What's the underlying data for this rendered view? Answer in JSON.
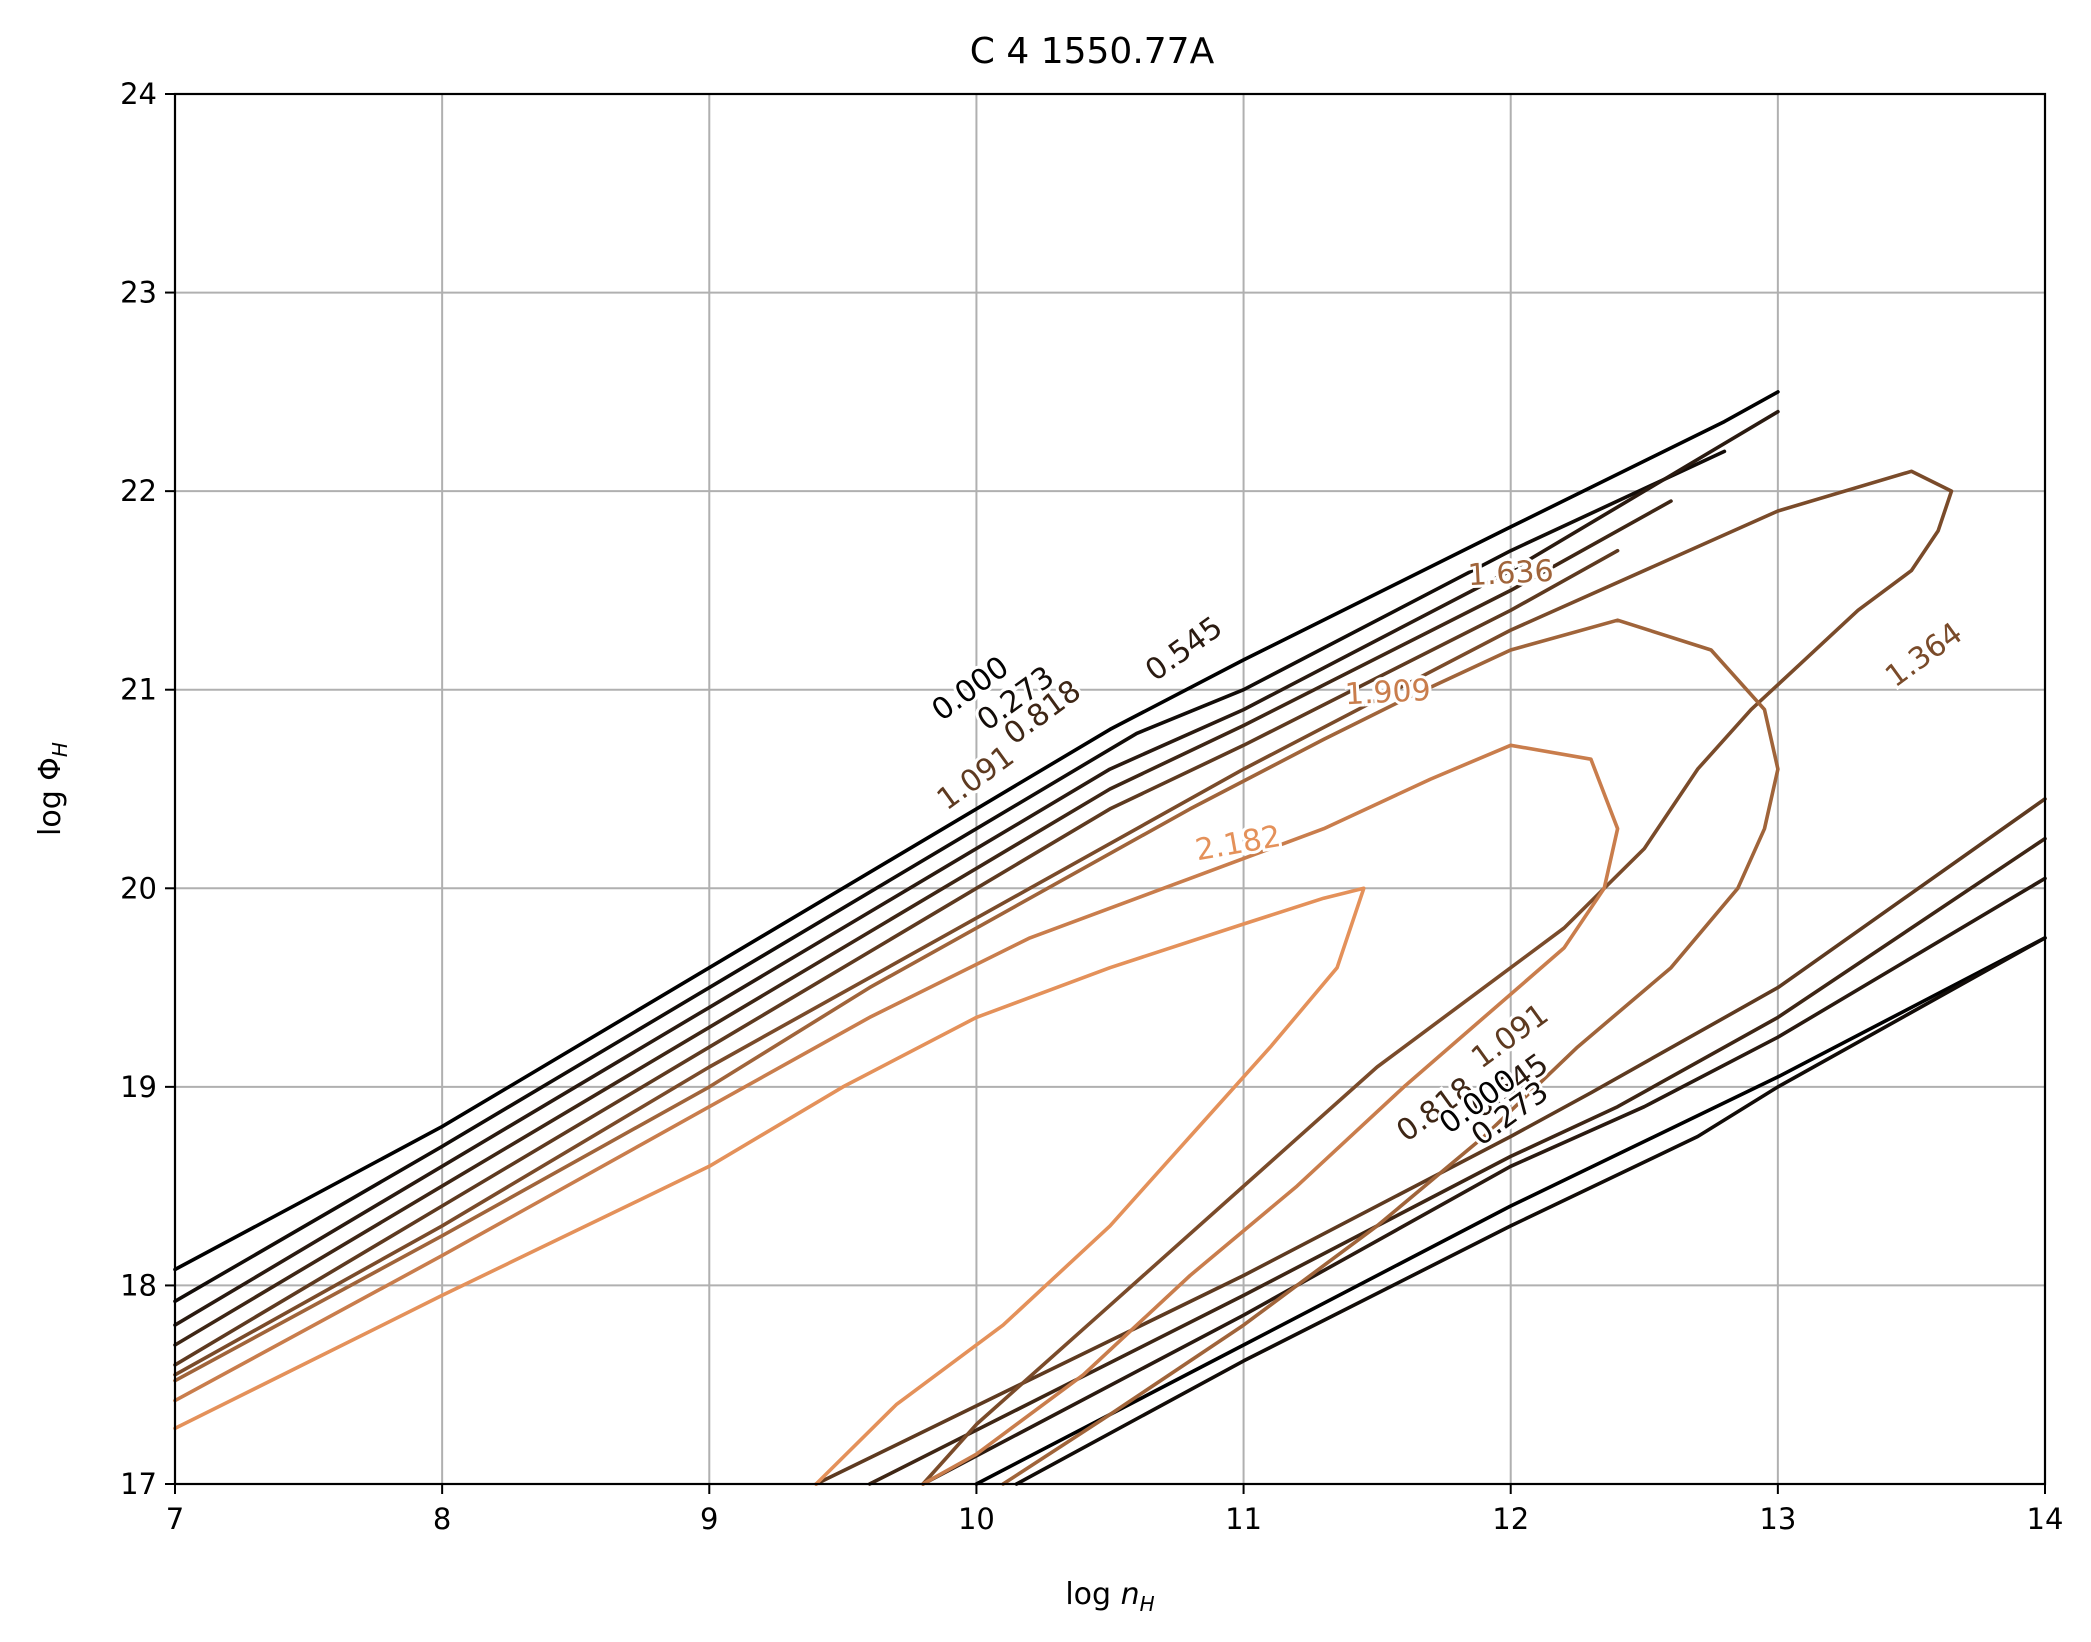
{
  "chart_data": {
    "type": "contour",
    "title": "C  4 1550.77A",
    "xlabel": "log n_H",
    "ylabel": "log Φ_H",
    "xlim": [
      7,
      14
    ],
    "ylim": [
      17,
      24
    ],
    "xticks": [
      "7",
      "8",
      "9",
      "10",
      "11",
      "12",
      "13",
      "14"
    ],
    "yticks": [
      "17",
      "18",
      "19",
      "20",
      "21",
      "22",
      "23",
      "24"
    ],
    "grid": true,
    "levels": [
      {
        "value": 0.0,
        "color": "#000000",
        "segments": [
          [
            [
              7,
              18.08
            ],
            [
              8,
              18.8
            ],
            [
              9,
              19.6
            ],
            [
              10,
              20.4
            ],
            [
              10.5,
              20.8
            ],
            [
              11,
              21.15
            ],
            [
              12,
              21.82
            ],
            [
              12.8,
              22.35
            ],
            [
              13,
              22.5
            ]
          ],
          [
            [
              10,
              17.0
            ],
            [
              11,
              17.7
            ],
            [
              12,
              18.4
            ],
            [
              13,
              19.05
            ],
            [
              14,
              19.75
            ]
          ]
        ]
      },
      {
        "value": 0.273,
        "color": "#120c08",
        "segments": [
          [
            [
              7,
              17.92
            ],
            [
              8,
              18.7
            ],
            [
              9,
              19.5
            ],
            [
              10,
              20.3
            ],
            [
              10.6,
              20.78
            ],
            [
              11,
              21.0
            ],
            [
              12,
              21.7
            ],
            [
              12.8,
              22.2
            ]
          ],
          [
            [
              10.15,
              17.0
            ],
            [
              11,
              17.62
            ],
            [
              12,
              18.3
            ],
            [
              12.7,
              18.75
            ],
            [
              13,
              19.0
            ],
            [
              14,
              19.75
            ]
          ]
        ]
      },
      {
        "value": 0.545,
        "color": "#2a1a10",
        "segments": [
          [
            [
              7,
              17.8
            ],
            [
              8,
              18.6
            ],
            [
              9,
              19.4
            ],
            [
              10,
              20.2
            ],
            [
              10.5,
              20.6
            ],
            [
              11,
              20.9
            ],
            [
              12,
              21.6
            ],
            [
              13,
              22.4
            ]
          ],
          [
            [
              9.8,
              17.0
            ],
            [
              11,
              17.85
            ],
            [
              12,
              18.6
            ],
            [
              12.5,
              18.9
            ],
            [
              13,
              19.25
            ],
            [
              14,
              20.05
            ]
          ]
        ]
      },
      {
        "value": 0.818,
        "color": "#3e2615",
        "segments": [
          [
            [
              7,
              17.7
            ],
            [
              8,
              18.5
            ],
            [
              9,
              19.3
            ],
            [
              10,
              20.1
            ],
            [
              10.5,
              20.5
            ],
            [
              11,
              20.82
            ],
            [
              12,
              21.5
            ],
            [
              12.6,
              21.95
            ]
          ],
          [
            [
              9.6,
              17.0
            ],
            [
              11,
              17.95
            ],
            [
              12,
              18.65
            ],
            [
              12.4,
              18.9
            ],
            [
              13,
              19.35
            ],
            [
              14,
              20.25
            ]
          ]
        ]
      },
      {
        "value": 1.091,
        "color": "#5e3a20",
        "segments": [
          [
            [
              7,
              17.6
            ],
            [
              8,
              18.4
            ],
            [
              9,
              19.2
            ],
            [
              10,
              20.0
            ],
            [
              10.5,
              20.4
            ],
            [
              11,
              20.72
            ],
            [
              12,
              21.4
            ],
            [
              12.4,
              21.7
            ]
          ],
          [
            [
              9.4,
              17.0
            ],
            [
              11,
              18.05
            ],
            [
              12,
              18.75
            ],
            [
              12.3,
              18.97
            ],
            [
              13,
              19.5
            ],
            [
              14,
              20.45
            ]
          ]
        ]
      },
      {
        "value": 1.364,
        "color": "#7a4b2a",
        "segments": [
          [
            [
              7,
              17.55
            ],
            [
              8,
              18.3
            ],
            [
              9,
              19.1
            ],
            [
              10,
              19.85
            ],
            [
              11,
              20.6
            ],
            [
              12,
              21.3
            ],
            [
              13,
              21.9
            ],
            [
              13.5,
              22.1
            ],
            [
              13.65,
              22.0
            ],
            [
              13.6,
              21.8
            ],
            [
              13.5,
              21.6
            ],
            [
              13.3,
              21.4
            ],
            [
              13.1,
              21.15
            ],
            [
              12.9,
              20.9
            ],
            [
              12.7,
              20.6
            ],
            [
              12.5,
              20.2
            ],
            [
              12.2,
              19.8
            ],
            [
              12,
              19.6
            ],
            [
              11.5,
              19.1
            ],
            [
              11,
              18.5
            ],
            [
              10.5,
              17.9
            ],
            [
              10,
              17.3
            ],
            [
              9.8,
              17.0
            ]
          ]
        ]
      },
      {
        "value": 1.636,
        "color": "#a0643a",
        "segments": [
          [
            [
              7,
              17.52
            ],
            [
              8,
              18.25
            ],
            [
              9,
              19.0
            ],
            [
              9.6,
              19.5
            ],
            [
              10.2,
              19.95
            ],
            [
              10.8,
              20.4
            ],
            [
              11.3,
              20.75
            ],
            [
              11.6,
              20.95
            ],
            [
              12,
              21.2
            ],
            [
              12.4,
              21.35
            ],
            [
              12.75,
              21.2
            ],
            [
              12.95,
              20.9
            ],
            [
              13.0,
              20.6
            ],
            [
              12.95,
              20.3
            ],
            [
              12.85,
              20.0
            ],
            [
              12.6,
              19.6
            ],
            [
              12.25,
              19.2
            ],
            [
              11.9,
              18.75
            ],
            [
              11.5,
              18.3
            ],
            [
              11,
              17.8
            ],
            [
              10.5,
              17.35
            ],
            [
              10.1,
              17.0
            ]
          ]
        ]
      },
      {
        "value": 1.909,
        "color": "#c97d4c",
        "segments": [
          [
            [
              7,
              17.42
            ],
            [
              8,
              18.15
            ],
            [
              9,
              18.9
            ],
            [
              9.6,
              19.35
            ],
            [
              10.2,
              19.75
            ],
            [
              10.8,
              20.05
            ],
            [
              11.3,
              20.3
            ],
            [
              11.7,
              20.55
            ],
            [
              12.0,
              20.72
            ],
            [
              12.3,
              20.65
            ],
            [
              12.4,
              20.3
            ],
            [
              12.35,
              20.0
            ],
            [
              12.2,
              19.7
            ],
            [
              11.9,
              19.35
            ],
            [
              11.6,
              19.0
            ],
            [
              11.2,
              18.5
            ],
            [
              10.8,
              18.05
            ],
            [
              10.4,
              17.55
            ],
            [
              10.0,
              17.15
            ],
            [
              9.8,
              17.0
            ]
          ]
        ]
      },
      {
        "value": 2.182,
        "color": "#e4915a",
        "segments": [
          [
            [
              7,
              17.28
            ],
            [
              8,
              17.95
            ],
            [
              9,
              18.6
            ],
            [
              9.5,
              19.0
            ],
            [
              10,
              19.35
            ],
            [
              10.5,
              19.6
            ],
            [
              11,
              19.82
            ],
            [
              11.3,
              19.95
            ],
            [
              11.45,
              20.0
            ],
            [
              11.35,
              19.6
            ],
            [
              11.1,
              19.2
            ],
            [
              10.8,
              18.75
            ],
            [
              10.5,
              18.3
            ],
            [
              10.1,
              17.8
            ],
            [
              9.7,
              17.4
            ],
            [
              9.4,
              17.0
            ]
          ]
        ]
      }
    ],
    "contour_labels": [
      {
        "text": "0.000",
        "x": 9.98,
        "y": 21.0,
        "color": "#000000",
        "rotation": -36
      },
      {
        "text": "0.273",
        "x": 10.15,
        "y": 20.95,
        "color": "#120c08",
        "rotation": -36
      },
      {
        "text": "0.545",
        "x": 10.78,
        "y": 21.2,
        "color": "#2a1a10",
        "rotation": -36
      },
      {
        "text": "0.818",
        "x": 10.25,
        "y": 20.88,
        "color": "#3e2615",
        "rotation": -36
      },
      {
        "text": "1.091",
        "x": 10.0,
        "y": 20.55,
        "color": "#5e3a20",
        "rotation": -36
      },
      {
        "text": "1.636",
        "x": 12.0,
        "y": 21.58,
        "color": "#a0643a",
        "rotation": -3
      },
      {
        "text": "1.909",
        "x": 11.54,
        "y": 20.98,
        "color": "#c97d4c",
        "rotation": -3
      },
      {
        "text": "2.182",
        "x": 10.98,
        "y": 20.22,
        "color": "#e4915a",
        "rotation": -10
      },
      {
        "text": "1.364",
        "x": 13.55,
        "y": 21.17,
        "color": "#7a4b2a",
        "rotation": -36
      },
      {
        "text": "0.818",
        "x": 11.72,
        "y": 18.88,
        "color": "#3e2615",
        "rotation": -36
      },
      {
        "text": "1.091",
        "x": 12.0,
        "y": 19.25,
        "color": "#5e3a20",
        "rotation": -36
      },
      {
        "text": "0.545",
        "x": 12.0,
        "y": 19.0,
        "color": "#2a1a10",
        "rotation": -36
      },
      {
        "text": "0.273",
        "x": 12.0,
        "y": 18.86,
        "color": "#120c08",
        "rotation": -36
      },
      {
        "text": "0.000",
        "x": 11.88,
        "y": 18.92,
        "color": "#000000",
        "rotation": -36
      }
    ]
  }
}
